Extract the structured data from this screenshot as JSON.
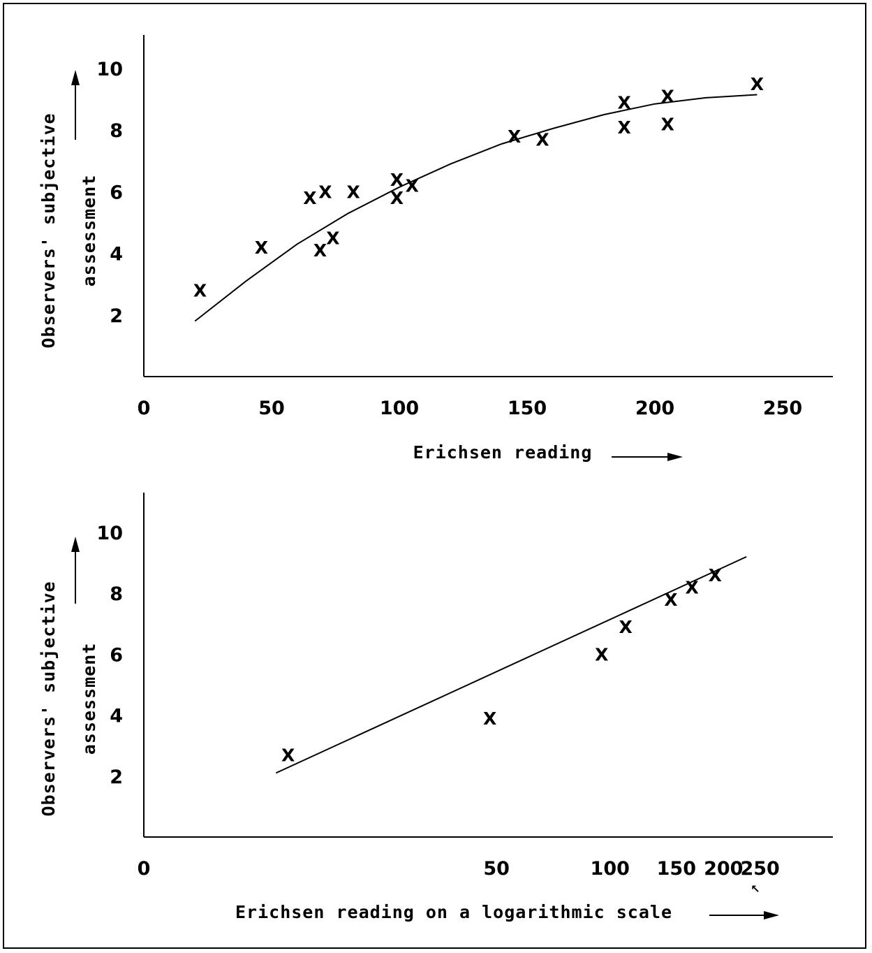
{
  "chart_data": [
    {
      "type": "scatter",
      "xlabel": "Erichsen reading",
      "ylabel": "Observers' subjective assessment",
      "x_ticks": [
        "0",
        "50",
        "100",
        "150",
        "200",
        "250"
      ],
      "y_ticks": [
        "2",
        "4",
        "6",
        "8",
        "10"
      ],
      "xlim": [
        0,
        270
      ],
      "ylim": [
        0,
        11
      ],
      "grid": false,
      "marker": "X",
      "series": [
        {
          "points": [
            {
              "x": 22,
              "y": 2.8
            },
            {
              "x": 46,
              "y": 4.2
            },
            {
              "x": 65,
              "y": 5.8
            },
            {
              "x": 69,
              "y": 4.1
            },
            {
              "x": 71,
              "y": 6.0
            },
            {
              "x": 74,
              "y": 4.5
            },
            {
              "x": 82,
              "y": 6.0
            },
            {
              "x": 99,
              "y": 5.8
            },
            {
              "x": 99,
              "y": 6.4
            },
            {
              "x": 105,
              "y": 6.2
            },
            {
              "x": 145,
              "y": 7.8
            },
            {
              "x": 156,
              "y": 7.7
            },
            {
              "x": 188,
              "y": 8.9
            },
            {
              "x": 188,
              "y": 8.1
            },
            {
              "x": 205,
              "y": 9.1
            },
            {
              "x": 205,
              "y": 8.2
            },
            {
              "x": 240,
              "y": 9.5
            }
          ]
        }
      ],
      "fit_curve": [
        {
          "x": 20,
          "y": 1.8
        },
        {
          "x": 40,
          "y": 3.1
        },
        {
          "x": 60,
          "y": 4.3
        },
        {
          "x": 80,
          "y": 5.3
        },
        {
          "x": 100,
          "y": 6.15
        },
        {
          "x": 120,
          "y": 6.9
        },
        {
          "x": 140,
          "y": 7.55
        },
        {
          "x": 160,
          "y": 8.05
        },
        {
          "x": 180,
          "y": 8.5
        },
        {
          "x": 200,
          "y": 8.85
        },
        {
          "x": 220,
          "y": 9.05
        },
        {
          "x": 240,
          "y": 9.15
        }
      ]
    },
    {
      "type": "scatter",
      "xlabel": "Erichsen reading on a logarithmic scale",
      "ylabel": "Observers' subjective assessment",
      "x_scale": "log",
      "x_ticks": [
        "0",
        "50",
        "100",
        "150",
        "200",
        "250"
      ],
      "y_ticks": [
        "2",
        "4",
        "6",
        "8",
        "10"
      ],
      "ylim": [
        0,
        11
      ],
      "grid": false,
      "marker": "X",
      "series": [
        {
          "points": [
            {
              "x": 14,
              "y": 2.7
            },
            {
              "x": 48,
              "y": 3.9
            },
            {
              "x": 95,
              "y": 6.0
            },
            {
              "x": 110,
              "y": 6.9
            },
            {
              "x": 145,
              "y": 7.8
            },
            {
              "x": 165,
              "y": 8.2
            },
            {
              "x": 190,
              "y": 8.6
            }
          ]
        }
      ],
      "fit_line": [
        {
          "x": 13,
          "y": 2.1
        },
        {
          "x": 230,
          "y": 9.2
        }
      ]
    }
  ]
}
